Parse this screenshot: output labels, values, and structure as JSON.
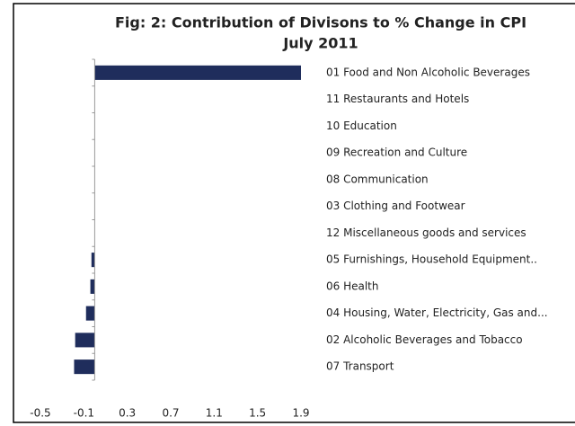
{
  "chart_data": {
    "type": "bar",
    "orientation": "horizontal",
    "title": "Fig: 2: Contribution of Divisons to % Change in CPI",
    "subtitle": "July 2011",
    "categories": [
      "01 Food and Non Alcoholic Beverages",
      "11 Restaurants and Hotels",
      "10 Education",
      "09 Recreation and Culture",
      "08 Communication",
      "03 Clothing and Footwear",
      "12 Miscellaneous goods and services",
      "05 Furnishings, Household Equipment..",
      "06 Health",
      "04 Housing, Water, Electricity, Gas and...",
      "02 Alcoholic Beverages and Tobacco",
      "07 Transport"
    ],
    "values": [
      1.9,
      0,
      0,
      0,
      0,
      0,
      0,
      -0.03,
      -0.04,
      -0.08,
      -0.18,
      -0.19
    ],
    "color": "#1f2d5c",
    "xlim": [
      -0.5,
      1.9
    ],
    "xticks": [
      -0.5,
      -0.1,
      0.3,
      0.7,
      1.1,
      1.5,
      1.9
    ],
    "grid": false
  }
}
